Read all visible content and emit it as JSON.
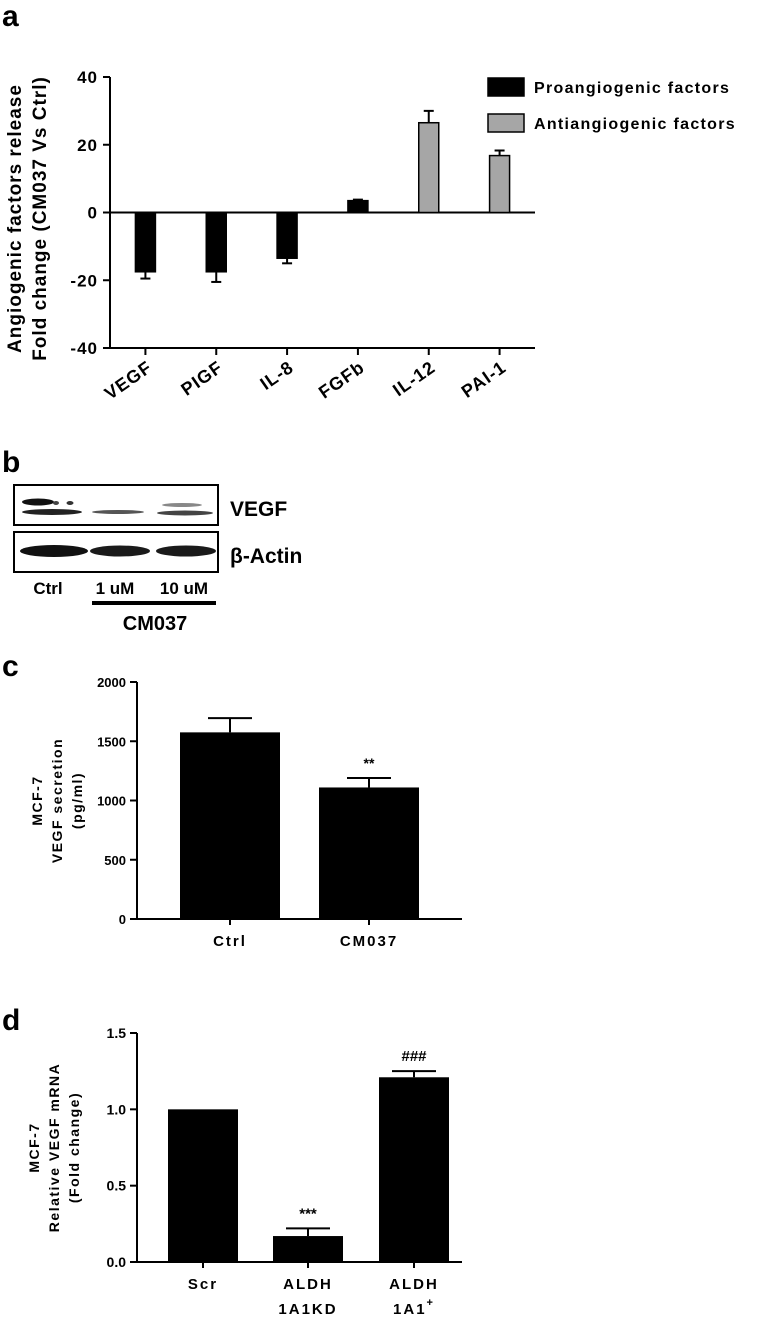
{
  "chart_data": [
    {
      "panel": "a",
      "type": "bar",
      "ylabel": [
        "Angiogenic factors release",
        "Fold change (CM037 Vs Ctrl)"
      ],
      "ylim": [
        -40,
        40
      ],
      "yticks": [
        40,
        20,
        0,
        -20,
        -40
      ],
      "categories": [
        "VEGF",
        "PIGF",
        "IL-8",
        "FGFb",
        "IL-12",
        "PAI-1"
      ],
      "series": [
        {
          "name": "Proangiogenic factors",
          "color": "#000000",
          "values": [
            -17.5,
            -17.5,
            -13.5,
            3.5,
            null,
            null
          ],
          "errors": [
            2.0,
            3.0,
            1.5,
            0.3,
            null,
            null
          ]
        },
        {
          "name": "Antiangiogenic factors",
          "color": "#a6a6a6",
          "values": [
            null,
            null,
            null,
            null,
            26.5,
            16.8
          ],
          "errors": [
            null,
            null,
            null,
            null,
            3.5,
            1.5
          ]
        }
      ],
      "legend": "top-right"
    },
    {
      "panel": "c",
      "type": "bar",
      "ylabel": [
        "MCF-7",
        "VEGF secretion",
        "(pg/ml)"
      ],
      "ylim": [
        0,
        2000
      ],
      "yticks": [
        2000,
        1500,
        1000,
        500,
        0
      ],
      "categories": [
        "Ctrl",
        "CM037"
      ],
      "values": [
        1575,
        1110
      ],
      "errors": [
        120,
        80
      ],
      "annotations": [
        "",
        "**"
      ],
      "color": "#000000"
    },
    {
      "panel": "d",
      "type": "bar",
      "ylabel": [
        "MCF-7",
        "Relative VEGF mRNA",
        "(Fold change)"
      ],
      "ylim": [
        0,
        1.5
      ],
      "yticks": [
        "1.5",
        "1.0",
        "0.5",
        "0.0"
      ],
      "categories": [
        [
          "Scr"
        ],
        [
          "ALDH",
          "1A1KD"
        ],
        [
          "ALDH",
          "1A1+"
        ]
      ],
      "values": [
        1.0,
        0.17,
        1.21
      ],
      "errors": [
        0,
        0.05,
        0.04
      ],
      "annotations": [
        "",
        "***",
        "###"
      ],
      "color": "#000000"
    }
  ],
  "panels": {
    "a": "a",
    "b": "b",
    "c": "c",
    "d": "d"
  },
  "western_blot": {
    "band_labels": [
      "VEGF",
      "β-Actin"
    ],
    "lane_labels": [
      "Ctrl",
      "1 uM",
      "10 uM"
    ],
    "treatment_label": "CM037"
  }
}
